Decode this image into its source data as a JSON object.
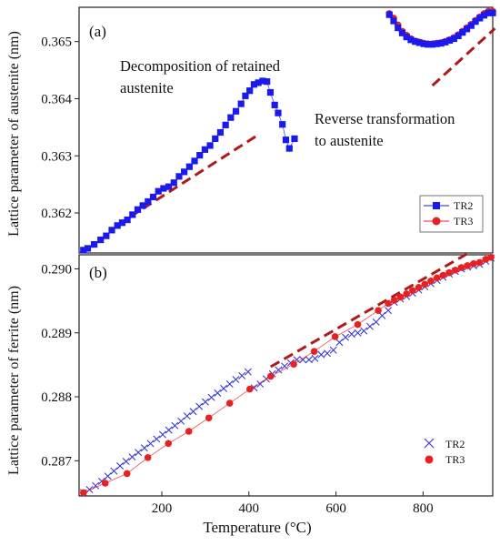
{
  "chart_data": [
    {
      "type": "scatter",
      "panel_label": "(a)",
      "ylabel": "Lattice parameter of austenite  (nm)",
      "xlim": [
        0,
        960
      ],
      "ylim": [
        0.3613,
        0.3656
      ],
      "yticks": [
        "0.362",
        "0.363",
        "0.364",
        "0.365"
      ],
      "ytick_values": [
        0.362,
        0.363,
        0.364,
        0.365
      ],
      "annotations": [
        {
          "lines": [
            "Decomposition of retained",
            "austenite"
          ]
        },
        {
          "lines": [
            "Reverse transformation",
            "to austenite"
          ]
        }
      ],
      "legend": {
        "placement": "lower-right"
      },
      "series": [
        {
          "name": "TR2",
          "marker": "square",
          "color": "#1a1aee",
          "points": [
            [
              10,
              0.36135
            ],
            [
              20,
              0.36138
            ],
            [
              35,
              0.36145
            ],
            [
              50,
              0.36153
            ],
            [
              63,
              0.3616
            ],
            [
              76,
              0.3617
            ],
            [
              89,
              0.36178
            ],
            [
              100,
              0.36183
            ],
            [
              112,
              0.36188
            ],
            [
              124,
              0.36197
            ],
            [
              136,
              0.36206
            ],
            [
              148,
              0.36213
            ],
            [
              160,
              0.3622
            ],
            [
              172,
              0.36228
            ],
            [
              184,
              0.36238
            ],
            [
              196,
              0.36243
            ],
            [
              208,
              0.36246
            ],
            [
              220,
              0.36253
            ],
            [
              232,
              0.36264
            ],
            [
              244,
              0.36272
            ],
            [
              256,
              0.36281
            ],
            [
              268,
              0.36291
            ],
            [
              280,
              0.36301
            ],
            [
              292,
              0.36311
            ],
            [
              304,
              0.36318
            ],
            [
              316,
              0.3633
            ],
            [
              328,
              0.36341
            ],
            [
              340,
              0.36354
            ],
            [
              352,
              0.36367
            ],
            [
              364,
              0.36378
            ],
            [
              376,
              0.36391
            ],
            [
              386,
              0.36405
            ],
            [
              396,
              0.36414
            ],
            [
              406,
              0.36425
            ],
            [
              416,
              0.36428
            ],
            [
              426,
              0.36431
            ],
            [
              436,
              0.3643
            ],
            [
              444,
              0.36411
            ],
            [
              454,
              0.36389
            ],
            [
              462,
              0.36375
            ],
            [
              472,
              0.36355
            ],
            [
              480,
              0.36328
            ],
            [
              488,
              0.36313
            ],
            [
              500,
              0.3633
            ]
          ]
        },
        {
          "name": "TR3",
          "marker": "circle",
          "color": "#e82020",
          "points": [
            [
              720,
              0.36549
            ],
            [
              730,
              0.36541
            ],
            [
              740,
              0.36529
            ],
            [
              750,
              0.36518
            ],
            [
              760,
              0.36511
            ],
            [
              770,
              0.36505
            ],
            [
              780,
              0.36501
            ],
            [
              790,
              0.36499
            ],
            [
              800,
              0.36497
            ],
            [
              810,
              0.36496
            ],
            [
              820,
              0.36496
            ],
            [
              830,
              0.36497
            ],
            [
              840,
              0.36498
            ],
            [
              850,
              0.365
            ],
            [
              860,
              0.36503
            ],
            [
              870,
              0.36507
            ],
            [
              880,
              0.36512
            ],
            [
              890,
              0.36518
            ],
            [
              900,
              0.36524
            ],
            [
              910,
              0.3653
            ],
            [
              920,
              0.36537
            ],
            [
              930,
              0.36543
            ],
            [
              940,
              0.36549
            ],
            [
              950,
              0.36553
            ],
            [
              960,
              0.36553
            ]
          ]
        },
        {
          "name": "TR2",
          "marker": "square",
          "color": "#1a1aee",
          "points": [
            [
              720,
              0.36547
            ],
            [
              730,
              0.36536
            ],
            [
              740,
              0.36524
            ],
            [
              750,
              0.36515
            ],
            [
              760,
              0.36508
            ],
            [
              770,
              0.36503
            ],
            [
              780,
              0.365
            ],
            [
              790,
              0.36498
            ],
            [
              800,
              0.36496
            ],
            [
              810,
              0.36495
            ],
            [
              820,
              0.36495
            ],
            [
              830,
              0.36496
            ],
            [
              840,
              0.36497
            ],
            [
              850,
              0.36499
            ],
            [
              860,
              0.36502
            ],
            [
              870,
              0.36505
            ],
            [
              880,
              0.3651
            ],
            [
              890,
              0.36516
            ],
            [
              900,
              0.36522
            ],
            [
              910,
              0.36528
            ],
            [
              920,
              0.36535
            ],
            [
              930,
              0.36541
            ],
            [
              940,
              0.36546
            ],
            [
              950,
              0.3655
            ],
            [
              960,
              0.3655
            ]
          ]
        }
      ],
      "guide_lines": [
        {
          "x": [
            118,
            412
          ],
          "y": [
            0.36193,
            0.36335
          ]
        },
        {
          "x": [
            820,
            965
          ],
          "y": [
            0.36423,
            0.36523
          ]
        }
      ]
    },
    {
      "type": "scatter",
      "panel_label": "(b)",
      "ylabel": "Lattice parameter of ferrite  (nm)",
      "xlabel": "Temperature (°C)",
      "xlim": [
        10,
        960
      ],
      "ylim": [
        0.28645,
        0.29022
      ],
      "xticks": [
        "200",
        "400",
        "600",
        "800"
      ],
      "xtick_values": [
        200,
        400,
        600,
        800
      ],
      "yticks": [
        "0.287",
        "0.288",
        "0.289",
        "0.290"
      ],
      "ytick_values": [
        0.287,
        0.288,
        0.289,
        0.29
      ],
      "legend": {
        "placement": "lower-right"
      },
      "series": [
        {
          "name": "TR2",
          "marker": "x",
          "color": "#3a3ad8",
          "points": [
            [
              20,
              0.2865
            ],
            [
              34,
              0.28655
            ],
            [
              48,
              0.28661
            ],
            [
              62,
              0.28668
            ],
            [
              76,
              0.28676
            ],
            [
              90,
              0.28684
            ],
            [
              104,
              0.28692
            ],
            [
              118,
              0.28699
            ],
            [
              132,
              0.28706
            ],
            [
              146,
              0.28713
            ],
            [
              160,
              0.2872
            ],
            [
              174,
              0.28727
            ],
            [
              188,
              0.28734
            ],
            [
              202,
              0.28741
            ],
            [
              216,
              0.28748
            ],
            [
              230,
              0.28755
            ],
            [
              244,
              0.28762
            ],
            [
              258,
              0.2877
            ],
            [
              272,
              0.28777
            ],
            [
              286,
              0.28785
            ],
            [
              300,
              0.28792
            ],
            [
              314,
              0.28799
            ],
            [
              328,
              0.28806
            ],
            [
              342,
              0.28813
            ],
            [
              356,
              0.2882
            ],
            [
              370,
              0.28827
            ],
            [
              384,
              0.28833
            ],
            [
              398,
              0.28839
            ],
            [
              412,
              0.28814
            ],
            [
              426,
              0.2882
            ],
            [
              440,
              0.28828
            ],
            [
              454,
              0.28836
            ],
            [
              468,
              0.28842
            ],
            [
              482,
              0.28848
            ],
            [
              496,
              0.28853
            ],
            [
              510,
              0.28858
            ],
            [
              524,
              0.28858
            ],
            [
              538,
              0.28858
            ],
            [
              552,
              0.2886
            ],
            [
              566,
              0.28866
            ],
            [
              580,
              0.28868
            ],
            [
              594,
              0.28873
            ],
            [
              608,
              0.28885
            ],
            [
              622,
              0.28893
            ],
            [
              636,
              0.28898
            ],
            [
              650,
              0.289
            ],
            [
              664,
              0.28903
            ],
            [
              678,
              0.2891
            ],
            [
              692,
              0.28917
            ],
            [
              706,
              0.28927
            ],
            [
              720,
              0.28935
            ],
            [
              734,
              0.28948
            ],
            [
              748,
              0.28953
            ],
            [
              762,
              0.28957
            ],
            [
              776,
              0.28962
            ],
            [
              790,
              0.28967
            ],
            [
              804,
              0.28972
            ],
            [
              818,
              0.28977
            ],
            [
              832,
              0.28982
            ],
            [
              846,
              0.28987
            ],
            [
              860,
              0.28992
            ],
            [
              874,
              0.28996
            ],
            [
              888,
              0.29
            ],
            [
              902,
              0.29003
            ],
            [
              916,
              0.29005
            ],
            [
              930,
              0.29007
            ],
            [
              944,
              0.29012
            ],
            [
              956,
              0.29017
            ]
          ]
        },
        {
          "name": "TR3",
          "marker": "circle",
          "color": "#e82020",
          "points": [
            [
              20,
              0.2865
            ],
            [
              70,
              0.28665
            ],
            [
              120,
              0.2868
            ],
            [
              168,
              0.28705
            ],
            [
              215,
              0.28727
            ],
            [
              262,
              0.28746
            ],
            [
              308,
              0.28767
            ],
            [
              356,
              0.2879
            ],
            [
              402,
              0.28812
            ],
            [
              450,
              0.28832
            ],
            [
              503,
              0.28851
            ],
            [
              550,
              0.28871
            ],
            [
              598,
              0.28894
            ],
            [
              650,
              0.28913
            ],
            [
              697,
              0.28935
            ],
            [
              720,
              0.28946
            ],
            [
              734,
              0.28951
            ],
            [
              748,
              0.28956
            ],
            [
              762,
              0.28961
            ],
            [
              776,
              0.28966
            ],
            [
              790,
              0.28971
            ],
            [
              804,
              0.28976
            ],
            [
              818,
              0.28981
            ],
            [
              832,
              0.28986
            ],
            [
              846,
              0.2899
            ],
            [
              860,
              0.28994
            ],
            [
              874,
              0.28998
            ],
            [
              888,
              0.29002
            ],
            [
              902,
              0.29005
            ],
            [
              916,
              0.29008
            ],
            [
              930,
              0.2901
            ],
            [
              944,
              0.29015
            ],
            [
              956,
              0.29018
            ]
          ]
        }
      ],
      "guide_lines": [
        {
          "x": [
            450,
            910
          ],
          "y": [
            0.28847,
            0.29027
          ]
        }
      ]
    }
  ]
}
